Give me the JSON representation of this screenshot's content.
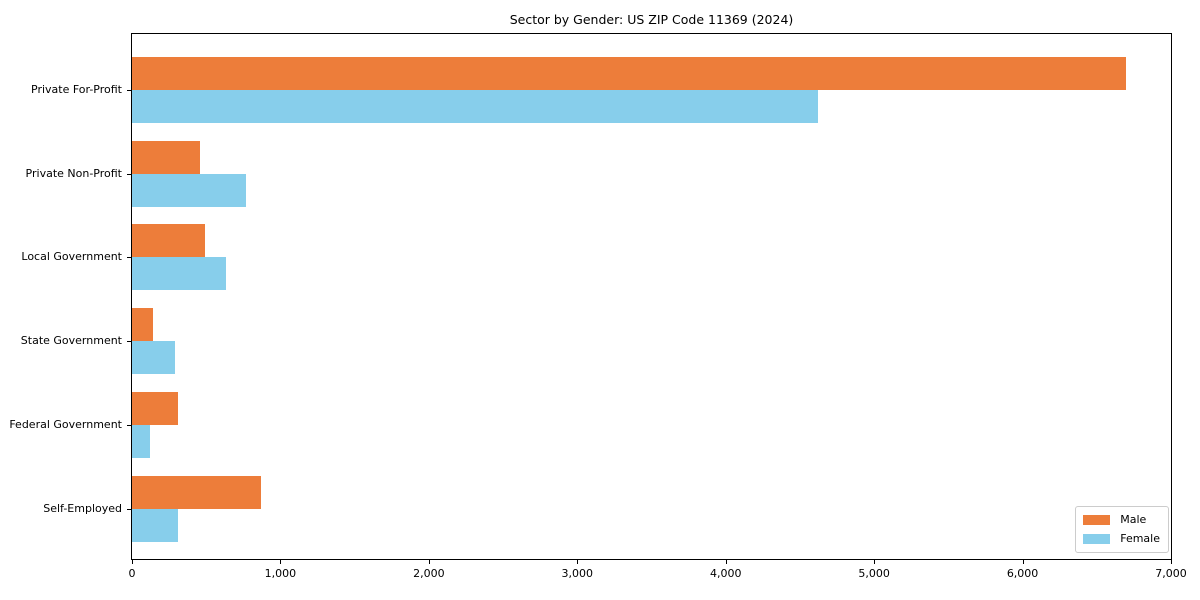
{
  "chart_data": {
    "type": "bar",
    "orientation": "horizontal",
    "title": "Sector by Gender: US ZIP Code 11369 (2024)",
    "categories": [
      "Private For-Profit",
      "Private Non-Profit",
      "Local Government",
      "State Government",
      "Federal Government",
      "Self-Employed"
    ],
    "series": [
      {
        "name": "Male",
        "color": "#ED7D3A",
        "values": [
          6700,
          460,
          490,
          140,
          310,
          870
        ]
      },
      {
        "name": "Female",
        "color": "#87CEEB",
        "values": [
          4620,
          770,
          630,
          290,
          120,
          310
        ]
      }
    ],
    "xlabel": "",
    "ylabel": "",
    "xlim": [
      0,
      7000
    ],
    "x_ticks": [
      {
        "value": 0,
        "label": "0"
      },
      {
        "value": 1000,
        "label": "1,000"
      },
      {
        "value": 2000,
        "label": "2,000"
      },
      {
        "value": 3000,
        "label": "3,000"
      },
      {
        "value": 4000,
        "label": "4,000"
      },
      {
        "value": 5000,
        "label": "5,000"
      },
      {
        "value": 6000,
        "label": "6,000"
      },
      {
        "value": 7000,
        "label": "7,000"
      }
    ],
    "legend_position": "lower right",
    "grid": false,
    "background": "#ffffff",
    "spine_color": "#000000"
  }
}
